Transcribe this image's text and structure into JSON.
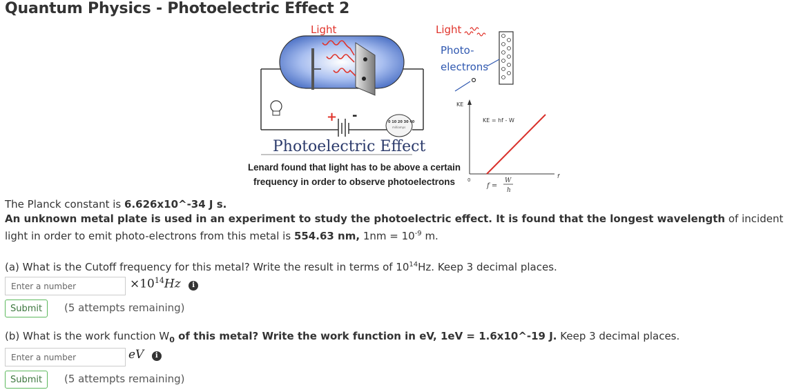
{
  "page": {
    "title": "Quantum Physics - Photoelectric Effect 2"
  },
  "figure": {
    "light_left": "Light",
    "light_right": "Light",
    "photo": "Photo-",
    "electrons": "electrons",
    "caption": "Photoelectric Effect",
    "lenard_line1": "Lenard found that light has to be above a certain",
    "lenard_line2": "frequency in order to observe photoelectrons",
    "ke_axis": "KE",
    "ke_equation": "KE = hf - W",
    "origin": "0",
    "f_axis": "f",
    "f0_label": "f  =",
    "w0_num": "W",
    "h_den": "h",
    "meter_scale": "0 10 20 30 40",
    "meter_unit": "milliamps",
    "colors": {
      "light_red": "#e0342c",
      "electron_blue": "#2f58b0",
      "graph_line": "#d9302a",
      "tube_blue": "#5a7fd0"
    }
  },
  "intro": {
    "planck_prefix": "The Planck constant is ",
    "planck_value": "6.626x10^-34 J s.",
    "problem_bold": "An unknown metal plate is used in an experiment to study the photoelectric effect. It is found that the longest wavelength",
    "problem_rest": " of incident light in order to emit photo-electrons from this metal is ",
    "wavelength": "554.63 nm,",
    "nm_conv_pre": " 1nm = 10",
    "nm_conv_exp": "-9",
    "nm_conv_post": " m."
  },
  "part_a": {
    "question_pre": "(a) What is the Cutoff frequency for this metal? Write the result in terms of 10",
    "question_exp": "14",
    "question_post": "Hz. Keep 3 decimal places.",
    "placeholder": "Enter a number",
    "unit_times": "×10",
    "unit_exp": "14",
    "unit_text": "Hz",
    "submit_label": "Submit",
    "attempts": "(5 attempts remaining)"
  },
  "part_b": {
    "question_pre": "(b) What is the work function W",
    "question_sub": "0",
    "question_bold": " of this metal? Write the work function in eV, 1eV = 1.6x10^-19 J.",
    "question_post": " Keep 3 decimal places.",
    "placeholder": "Enter a number",
    "unit_text": "eV",
    "submit_label": "Submit",
    "attempts": "(5 attempts remaining)"
  }
}
